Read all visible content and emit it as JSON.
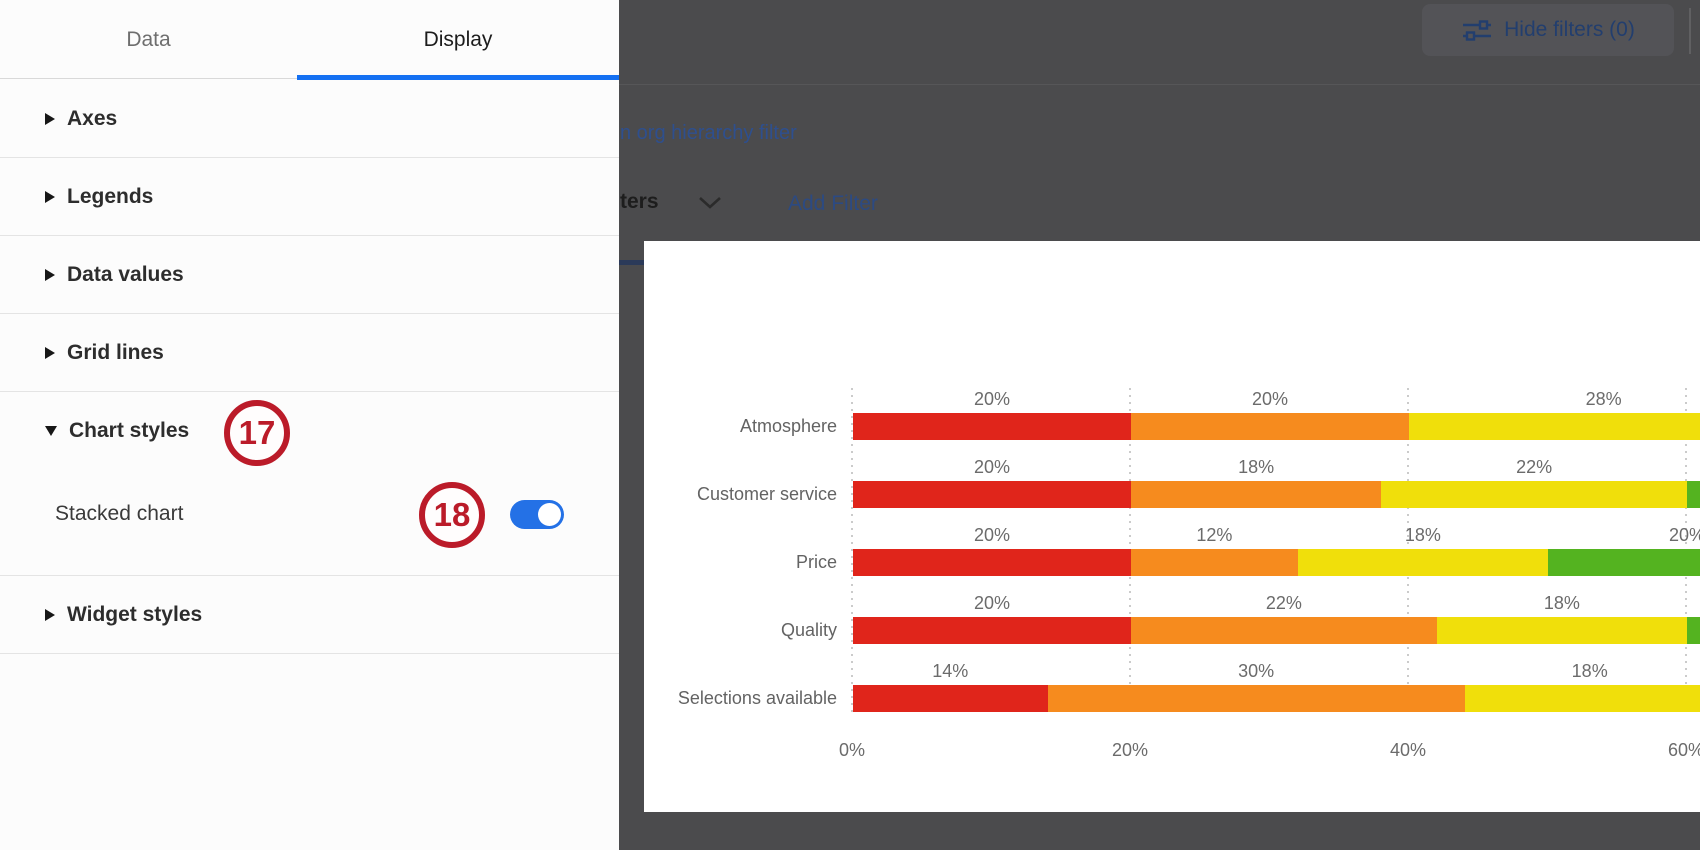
{
  "left_panel": {
    "tabs": [
      {
        "label": "Data",
        "active": false
      },
      {
        "label": "Display",
        "active": true
      }
    ],
    "accent_color": "#1470f2",
    "sections": [
      {
        "label": "Axes",
        "expanded": false
      },
      {
        "label": "Legends",
        "expanded": false
      },
      {
        "label": "Data values",
        "expanded": false
      },
      {
        "label": "Grid lines",
        "expanded": false
      },
      {
        "label": "Chart styles",
        "expanded": true,
        "badge": "17",
        "children": [
          {
            "type": "toggle",
            "label": "Stacked chart",
            "state": "on",
            "badge": "18"
          }
        ]
      },
      {
        "label": "Widget styles",
        "expanded": false
      }
    ]
  },
  "overlay_page": {
    "hide_filters_label": "Hide filters (0)",
    "org_link_text": "n org hierarchy filter",
    "filters_text": "ters",
    "add_filter_label": "Add Filter",
    "link_color": "#2e4f8e",
    "button_text_color": "#223e6e"
  },
  "annotations": {
    "badge_color": "#bb1b29",
    "numbers": [
      "17",
      "18"
    ]
  },
  "chart": {
    "colors": {
      "red": "#e0251b",
      "orange": "#f68b1e",
      "yellow": "#f0df0b",
      "green": "#54b320"
    },
    "rows": [
      {
        "category": "Atmosphere",
        "segments": [
          {
            "c": "red",
            "pct": 20,
            "label": "20%"
          },
          {
            "c": "orange",
            "pct": 20,
            "label": "20%"
          },
          {
            "c": "yellow",
            "pct": 28,
            "label": "28%"
          }
        ]
      },
      {
        "category": "Customer service",
        "segments": [
          {
            "c": "red",
            "pct": 20,
            "label": "20%"
          },
          {
            "c": "orange",
            "pct": 18,
            "label": "18%"
          },
          {
            "c": "yellow",
            "pct": 22,
            "label": "22%"
          },
          {
            "c": "green",
            "pct": 20,
            "label": ""
          }
        ]
      },
      {
        "category": "Price",
        "segments": [
          {
            "c": "red",
            "pct": 20,
            "label": "20%"
          },
          {
            "c": "orange",
            "pct": 12,
            "label": "12%"
          },
          {
            "c": "yellow",
            "pct": 18,
            "label": "18%"
          },
          {
            "c": "green",
            "pct": 20,
            "label": "20%"
          }
        ]
      },
      {
        "category": "Quality",
        "segments": [
          {
            "c": "red",
            "pct": 20,
            "label": "20%"
          },
          {
            "c": "orange",
            "pct": 22,
            "label": "22%"
          },
          {
            "c": "yellow",
            "pct": 18,
            "label": "18%"
          },
          {
            "c": "green",
            "pct": 20,
            "label": ""
          }
        ]
      },
      {
        "category": "Selections available",
        "segments": [
          {
            "c": "red",
            "pct": 14,
            "label": "14%"
          },
          {
            "c": "orange",
            "pct": 30,
            "label": "30%"
          },
          {
            "c": "yellow",
            "pct": 18,
            "label": "18%"
          }
        ]
      }
    ],
    "axis_ticks": [
      {
        "label": "0%",
        "pct": 0
      },
      {
        "label": "20%",
        "pct": 20
      },
      {
        "label": "40%",
        "pct": 40
      },
      {
        "label": "60%",
        "pct": 60
      }
    ]
  },
  "chart_data": {
    "type": "bar",
    "orientation": "horizontal",
    "stacked": true,
    "categories": [
      "Atmosphere",
      "Customer service",
      "Price",
      "Quality",
      "Selections available"
    ],
    "series": [
      {
        "name": "red",
        "values": [
          20,
          20,
          20,
          20,
          14
        ]
      },
      {
        "name": "orange",
        "values": [
          20,
          18,
          12,
          22,
          30
        ]
      },
      {
        "name": "yellow",
        "values": [
          28,
          22,
          18,
          18,
          18
        ]
      },
      {
        "name": "green",
        "values": [
          null,
          null,
          20,
          null,
          null
        ]
      }
    ],
    "xlabel": "",
    "ylabel": "",
    "x_tick_labels": [
      "0%",
      "20%",
      "40%",
      "60%"
    ],
    "xlim": [
      0,
      61
    ],
    "grid": "dotted-vertical",
    "legend": "hidden",
    "note": "right side of chart clipped by screen edge; green segments of rows 2 and 4 and some labels are cut off"
  }
}
